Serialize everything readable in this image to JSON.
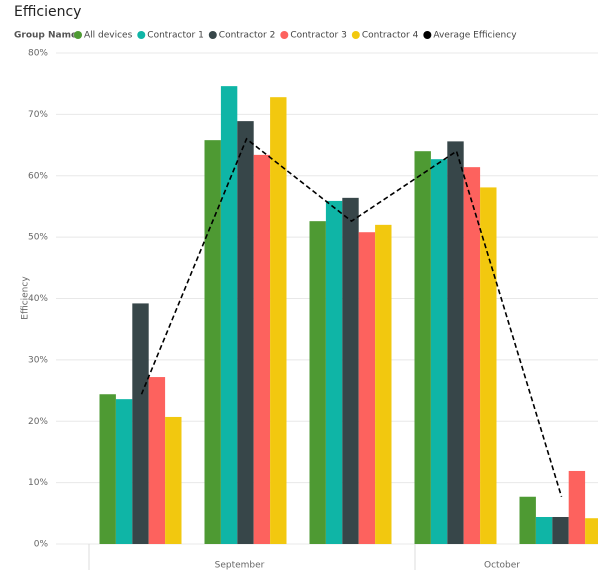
{
  "chart_data": {
    "type": "bar",
    "title": "Efficiency",
    "legend_title": "Group Name",
    "y_label": "Efficiency",
    "categories": [
      null,
      null,
      null,
      null,
      null
    ],
    "x_groups": [
      {
        "label": "September",
        "count": 3
      },
      {
        "label": "October",
        "count": 2
      }
    ],
    "series": [
      {
        "name": "All devices",
        "color": "#4e9a33",
        "values": [
          24.4,
          65.8,
          52.6,
          64.0,
          7.7
        ]
      },
      {
        "name": "Contractor 1",
        "color": "#0fb5a6",
        "values": [
          23.6,
          74.6,
          55.9,
          62.7,
          4.4
        ]
      },
      {
        "name": "Contractor 2",
        "color": "#374649",
        "values": [
          39.2,
          68.9,
          56.4,
          65.6,
          4.4
        ]
      },
      {
        "name": "Contractor 3",
        "color": "#fd625e",
        "values": [
          27.2,
          63.4,
          50.8,
          61.4,
          11.9
        ]
      },
      {
        "name": "Contractor 4",
        "color": "#f2c80f",
        "values": [
          20.7,
          72.8,
          52.0,
          58.1,
          4.2
        ]
      },
      {
        "name": "Average Efficiency",
        "color": "#000000",
        "type": "line",
        "values": [
          24.4,
          66.0,
          52.6,
          64.0,
          7.7
        ]
      }
    ],
    "ylim": [
      0,
      80
    ],
    "yticks": [
      {
        "value": 0,
        "label": "0%"
      },
      {
        "value": 10,
        "label": "10%"
      },
      {
        "value": 20,
        "label": "20%"
      },
      {
        "value": 30,
        "label": "30%"
      },
      {
        "value": 40,
        "label": "40%"
      },
      {
        "value": 50,
        "label": "50%"
      },
      {
        "value": 60,
        "label": "60%"
      },
      {
        "value": 70,
        "label": "70%"
      },
      {
        "value": 80,
        "label": "80%"
      }
    ],
    "grid": true
  }
}
